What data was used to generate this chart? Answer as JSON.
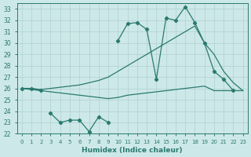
{
  "xlabel": "Humidex (Indice chaleur)",
  "x": [
    0,
    1,
    2,
    3,
    4,
    5,
    6,
    7,
    8,
    9,
    10,
    11,
    12,
    13,
    14,
    15,
    16,
    17,
    18,
    19,
    20,
    21,
    22,
    23
  ],
  "line_jagged_top": [
    26.0,
    26.0,
    25.8,
    null,
    null,
    null,
    null,
    null,
    null,
    null,
    30.2,
    31.7,
    31.8,
    31.2,
    26.8,
    32.2,
    32.0,
    33.2,
    31.8,
    30.0,
    27.5,
    26.8,
    25.8,
    null
  ],
  "line_upper": [
    26.0,
    26.0,
    25.9,
    26.0,
    26.1,
    26.2,
    26.3,
    26.5,
    26.7,
    27.0,
    27.5,
    28.0,
    28.5,
    29.0,
    29.5,
    30.0,
    30.5,
    31.0,
    31.5,
    30.0,
    29.0,
    27.5,
    26.5,
    25.8
  ],
  "line_lower": [
    26.0,
    25.9,
    25.8,
    25.7,
    25.6,
    25.5,
    25.4,
    25.3,
    25.2,
    25.1,
    25.2,
    25.4,
    25.5,
    25.6,
    25.7,
    25.8,
    25.9,
    26.0,
    26.1,
    26.2,
    25.8,
    25.8,
    25.8,
    25.8
  ],
  "line_bottom": [
    null,
    null,
    null,
    23.8,
    23.0,
    23.2,
    23.2,
    22.2,
    23.5,
    23.0,
    null,
    null,
    null,
    null,
    null,
    null,
    null,
    null,
    null,
    null,
    null,
    null,
    null,
    null
  ],
  "bg_color": "#cde8e8",
  "line_color": "#2a7a70",
  "grid_color": "#b0d0d0",
  "ylim": [
    22,
    33.5
  ],
  "xlim": [
    -0.5,
    23.5
  ],
  "yticks": [
    22,
    23,
    24,
    25,
    26,
    27,
    28,
    29,
    30,
    31,
    32,
    33
  ],
  "xticks": [
    0,
    1,
    2,
    3,
    4,
    5,
    6,
    7,
    8,
    9,
    10,
    11,
    12,
    13,
    14,
    15,
    16,
    17,
    18,
    19,
    20,
    21,
    22,
    23
  ]
}
